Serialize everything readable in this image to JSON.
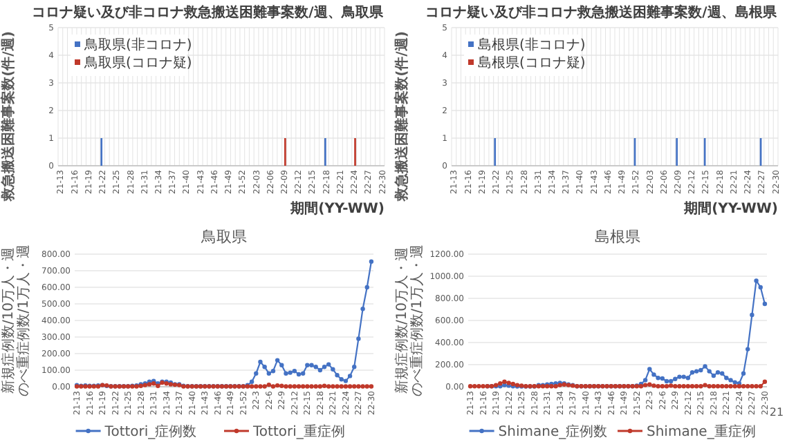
{
  "chart_data": [
    {
      "type": "bar",
      "title": "コロナ疑い及び非コロナ救急搬送困難事案数/週、鳥取県",
      "xlabel": "期間(YY-WW)",
      "ylabel": "救急搬送困難事案数(件/週)",
      "categories": [
        "21-13",
        null,
        null,
        "21-16",
        null,
        null,
        "21-19",
        null,
        null,
        "21-22",
        null,
        null,
        "21-25",
        null,
        null,
        "21-28",
        null,
        null,
        "21-31",
        null,
        null,
        "21-34",
        null,
        null,
        "21-37",
        null,
        null,
        "21-40",
        null,
        null,
        "21-43",
        null,
        null,
        "21-46",
        null,
        null,
        "21-49",
        null,
        null,
        "21-52",
        null,
        null,
        "22-03",
        null,
        null,
        "22-06",
        null,
        null,
        "22-09",
        null,
        null,
        "22-12",
        null,
        null,
        "22-15",
        null,
        null,
        "22-18",
        null,
        null,
        "22-21",
        null,
        null,
        "22-24",
        null,
        null,
        "22-27",
        null,
        null,
        "22-30"
      ],
      "series": [
        {
          "name": "鳥取県(非コロナ)",
          "color": "#4472c4",
          "values": [
            0,
            0,
            0,
            0,
            0,
            0,
            0,
            0,
            0,
            1,
            0,
            0,
            0,
            0,
            0,
            0,
            0,
            0,
            0,
            0,
            0,
            0,
            0,
            0,
            0,
            0,
            0,
            0,
            0,
            0,
            0,
            0,
            0,
            0,
            0,
            0,
            0,
            0,
            0,
            0,
            0,
            0,
            0,
            0,
            0,
            0,
            0,
            0,
            0,
            0,
            0,
            0,
            0,
            0,
            0,
            0,
            0,
            1,
            0,
            0,
            0,
            0,
            0,
            0,
            0,
            0,
            0,
            0,
            0,
            0
          ]
        },
        {
          "name": "鳥取県(コロナ疑)",
          "color": "#c0392b",
          "values": [
            0,
            0,
            0,
            0,
            0,
            0,
            0,
            0,
            0,
            0,
            0,
            0,
            0,
            0,
            0,
            0,
            0,
            0,
            0,
            0,
            0,
            0,
            0,
            0,
            0,
            0,
            0,
            0,
            0,
            0,
            0,
            0,
            0,
            0,
            0,
            0,
            0,
            0,
            0,
            0,
            0,
            0,
            0,
            0,
            0,
            0,
            0,
            0,
            1,
            0,
            0,
            0,
            0,
            0,
            0,
            0,
            0,
            0,
            0,
            0,
            0,
            0,
            0,
            1,
            0,
            0,
            0,
            0,
            0,
            0
          ]
        }
      ],
      "ylim": [
        0,
        5
      ],
      "yticks": [
        0,
        1,
        2,
        3,
        4,
        5
      ],
      "grid": true,
      "legend": "top left"
    },
    {
      "type": "bar",
      "title": "コロナ疑い及び非コロナ救急搬送困難事案数/週、島根県",
      "xlabel": "期間(YY-WW)",
      "ylabel": "救急搬送困難事案数(件/週)",
      "categories": [
        "21-13",
        null,
        null,
        "21-16",
        null,
        null,
        "21-19",
        null,
        null,
        "21-22",
        null,
        null,
        "21-25",
        null,
        null,
        "21-28",
        null,
        null,
        "21-31",
        null,
        null,
        "21-34",
        null,
        null,
        "21-37",
        null,
        null,
        "21-40",
        null,
        null,
        "21-43",
        null,
        null,
        "21-46",
        null,
        null,
        "21-49",
        null,
        null,
        "21-52",
        null,
        null,
        "22-03",
        null,
        null,
        "22-06",
        null,
        null,
        "22-09",
        null,
        null,
        "22-12",
        null,
        null,
        "22-15",
        null,
        null,
        "22-18",
        null,
        null,
        "22-21",
        null,
        null,
        "22-24",
        null,
        null,
        "22-27",
        null,
        null,
        "22-30"
      ],
      "series": [
        {
          "name": "島根県(非コロナ)",
          "color": "#4472c4",
          "values": [
            0,
            0,
            0,
            0,
            0,
            0,
            0,
            0,
            0,
            1,
            0,
            0,
            0,
            0,
            0,
            0,
            0,
            0,
            0,
            0,
            0,
            0,
            0,
            0,
            0,
            0,
            0,
            0,
            0,
            0,
            0,
            0,
            0,
            0,
            0,
            0,
            0,
            0,
            0,
            1,
            0,
            0,
            0,
            0,
            0,
            0,
            0,
            0,
            1,
            0,
            0,
            0,
            0,
            0,
            1,
            0,
            0,
            0,
            0,
            0,
            0,
            0,
            0,
            0,
            0,
            0,
            1,
            0,
            0,
            0
          ]
        },
        {
          "name": "島根県(コロナ疑)",
          "color": "#c0392b",
          "values": [
            0,
            0,
            0,
            0,
            0,
            0,
            0,
            0,
            0,
            0,
            0,
            0,
            0,
            0,
            0,
            0,
            0,
            0,
            0,
            0,
            0,
            0,
            0,
            0,
            0,
            0,
            0,
            0,
            0,
            0,
            0,
            0,
            0,
            0,
            0,
            0,
            0,
            0,
            0,
            0,
            0,
            0,
            0,
            0,
            0,
            0,
            0,
            0,
            0,
            0,
            0,
            0,
            0,
            0,
            0,
            0,
            0,
            0,
            0,
            0,
            0,
            0,
            0,
            0,
            0,
            0,
            0,
            0,
            0,
            0
          ]
        }
      ],
      "ylim": [
        0,
        5
      ],
      "yticks": [
        0,
        1,
        2,
        3,
        4,
        5
      ],
      "grid": true,
      "legend": "top left"
    },
    {
      "type": "line",
      "title": "鳥取県",
      "ylabel": "新規症例数/10万人・週のべ重症例数/1万人・週",
      "categories": [
        "21-13",
        null,
        null,
        "21-16",
        null,
        null,
        "21-19",
        null,
        null,
        "21-22",
        null,
        null,
        "21-25",
        null,
        null,
        "21-28",
        null,
        null,
        "21-31",
        null,
        null,
        "21-34",
        null,
        null,
        "21-37",
        null,
        null,
        "21-40",
        null,
        null,
        "21-43",
        null,
        null,
        "21-46",
        null,
        null,
        "21-49",
        null,
        null,
        "21-52",
        null,
        null,
        "22-3",
        null,
        null,
        "22-6",
        null,
        null,
        "22-9",
        null,
        null,
        "22-12",
        null,
        null,
        "22-15",
        null,
        null,
        "22-18",
        null,
        null,
        "22-21",
        null,
        null,
        "22-24",
        null,
        null,
        "22-27",
        null,
        null,
        "22-30"
      ],
      "series": [
        {
          "name": "Tottori_症例数",
          "color": "#4472c4",
          "values": [
            10,
            5,
            8,
            5,
            5,
            8,
            10,
            5,
            3,
            3,
            3,
            3,
            3,
            5,
            8,
            15,
            20,
            30,
            35,
            20,
            30,
            30,
            25,
            15,
            15,
            5,
            3,
            3,
            3,
            3,
            3,
            3,
            3,
            3,
            3,
            3,
            3,
            3,
            3,
            3,
            10,
            30,
            80,
            150,
            120,
            80,
            95,
            160,
            130,
            80,
            85,
            95,
            75,
            80,
            130,
            130,
            120,
            100,
            120,
            135,
            105,
            70,
            45,
            35,
            65,
            120,
            290,
            470,
            600,
            755
          ]
        },
        {
          "name": "Tottori_重症例",
          "color": "#c0392b",
          "values": [
            2,
            2,
            2,
            2,
            2,
            2,
            10,
            8,
            2,
            2,
            2,
            2,
            2,
            2,
            2,
            5,
            10,
            15,
            20,
            5,
            25,
            20,
            15,
            12,
            10,
            2,
            2,
            2,
            2,
            2,
            2,
            2,
            2,
            2,
            2,
            2,
            2,
            2,
            2,
            2,
            2,
            2,
            2,
            2,
            2,
            12,
            2,
            8,
            5,
            2,
            2,
            2,
            2,
            2,
            2,
            2,
            2,
            2,
            5,
            2,
            2,
            2,
            2,
            2,
            2,
            2,
            2,
            2,
            2,
            2
          ]
        }
      ],
      "ylim": [
        0,
        800
      ],
      "yticks": [
        {
          "value": 0,
          "label": "0.00"
        },
        {
          "value": 100,
          "label": "100.00"
        },
        {
          "value": 200,
          "label": "200.00"
        },
        {
          "value": 300,
          "label": "300.00"
        },
        {
          "value": 400,
          "label": "400.00"
        },
        {
          "value": 500,
          "label": "500.00"
        },
        {
          "value": 600,
          "label": "600.00"
        },
        {
          "value": 700,
          "label": "700.00"
        },
        {
          "value": 800,
          "label": "800.00"
        }
      ],
      "grid": "y",
      "legend": "bottom",
      "marker": "circle"
    },
    {
      "type": "line",
      "title": "島根県",
      "ylabel": "新規症例数/10万人・週のべ重症例数/1万人・週",
      "categories": [
        "21-13",
        null,
        null,
        "21-16",
        null,
        null,
        "21-19",
        null,
        null,
        "21-22",
        null,
        null,
        "21-25",
        null,
        null,
        "21-28",
        null,
        null,
        "21-31",
        null,
        null,
        "21-34",
        null,
        null,
        "21-37",
        null,
        null,
        "21-40",
        null,
        null,
        "21-43",
        null,
        null,
        "21-46",
        null,
        null,
        "21-49",
        null,
        null,
        "21-52",
        null,
        null,
        "22-3",
        null,
        null,
        "22-6",
        null,
        null,
        "22-9",
        null,
        null,
        "22-12",
        null,
        null,
        "22-15",
        null,
        null,
        "22-18",
        null,
        null,
        "22-21",
        null,
        null,
        "22-24",
        null,
        null,
        "22-27",
        null,
        null,
        "22-30"
      ],
      "series": [
        {
          "name": "Shimane_症例数",
          "color": "#4472c4",
          "values": [
            null,
            null,
            null,
            null,
            5,
            5,
            5,
            5,
            15,
            10,
            5,
            3,
            3,
            3,
            3,
            3,
            15,
            15,
            20,
            25,
            30,
            35,
            30,
            20,
            15,
            5,
            5,
            5,
            5,
            5,
            5,
            5,
            5,
            5,
            5,
            5,
            5,
            5,
            5,
            10,
            25,
            60,
            160,
            110,
            80,
            75,
            50,
            50,
            70,
            90,
            90,
            80,
            130,
            140,
            150,
            185,
            140,
            100,
            130,
            120,
            80,
            60,
            40,
            30,
            120,
            340,
            650,
            960,
            900,
            750
          ]
        },
        {
          "name": "Shimane_重症例",
          "color": "#c0392b",
          "values": [
            5,
            5,
            5,
            5,
            5,
            5,
            15,
            30,
            45,
            35,
            25,
            15,
            10,
            5,
            5,
            5,
            5,
            5,
            5,
            5,
            5,
            15,
            20,
            15,
            10,
            5,
            5,
            5,
            5,
            5,
            5,
            5,
            5,
            5,
            5,
            5,
            5,
            5,
            5,
            5,
            5,
            15,
            20,
            10,
            5,
            5,
            5,
            10,
            5,
            5,
            5,
            5,
            5,
            5,
            5,
            15,
            5,
            5,
            5,
            5,
            5,
            5,
            5,
            5,
            5,
            5,
            5,
            5,
            5,
            45
          ]
        }
      ],
      "ylim": [
        0,
        1200
      ],
      "yticks": [
        {
          "value": 0,
          "label": "0.00"
        },
        {
          "value": 200,
          "label": "200.00"
        },
        {
          "value": 400,
          "label": "400.00"
        },
        {
          "value": 600,
          "label": "600.00"
        },
        {
          "value": 800,
          "label": "800.00"
        },
        {
          "value": 1000,
          "label": "1000.00"
        },
        {
          "value": 1200,
          "label": "1200.00"
        }
      ],
      "grid": "y",
      "legend": "bottom",
      "marker": "circle",
      "annotations": [
        "21"
      ]
    }
  ]
}
